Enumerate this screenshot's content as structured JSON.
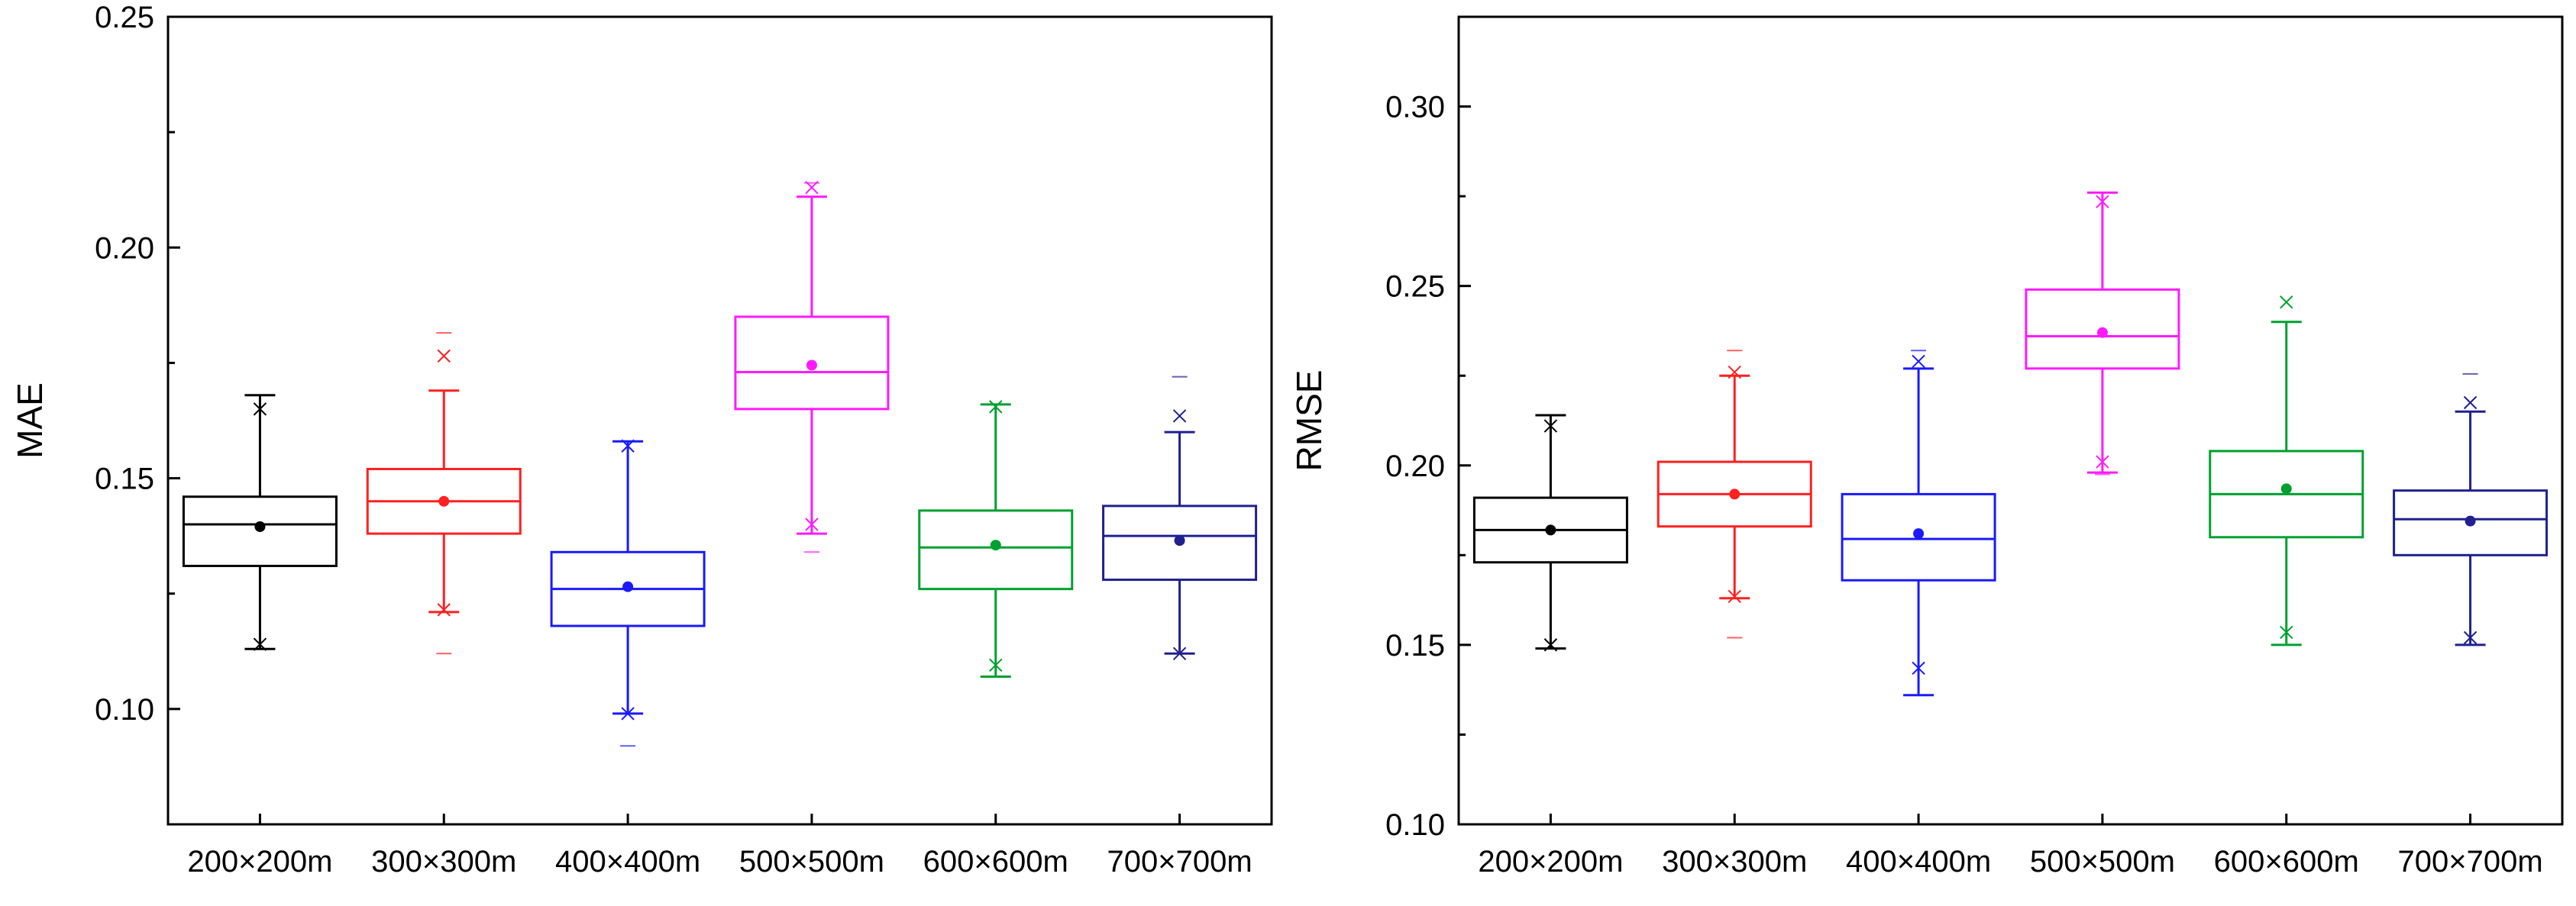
{
  "chart_data": [
    {
      "type": "box",
      "title": "",
      "xlabel": "",
      "ylabel": "MAE",
      "ylim": [
        0.075,
        0.25
      ],
      "yticks": [
        0.1,
        0.15,
        0.2,
        0.25
      ],
      "ytick_labels": [
        "0.10",
        "0.15",
        "0.20",
        "0.25"
      ],
      "categories": [
        "200×200m",
        "300×300m",
        "400×400m",
        "500×500m",
        "600×600m",
        "700×700m"
      ],
      "series": [
        {
          "name": "200×200m",
          "color": "#000000",
          "whisker_low": 0.113,
          "q1": 0.131,
          "median": 0.14,
          "q3": 0.146,
          "whisker_high": 0.168,
          "mean": 0.1395,
          "x_marks": [
            0.165,
            0.114
          ],
          "outliers": []
        },
        {
          "name": "300×300m",
          "color": "#ff2020",
          "whisker_low": 0.121,
          "q1": 0.138,
          "median": 0.145,
          "q3": 0.152,
          "whisker_high": 0.169,
          "mean": 0.145,
          "x_marks": [
            0.1765,
            0.1215
          ],
          "outliers": [
            0.1815,
            0.112
          ]
        },
        {
          "name": "400×400m",
          "color": "#1a1aff",
          "whisker_low": 0.099,
          "q1": 0.118,
          "median": 0.126,
          "q3": 0.134,
          "whisker_high": 0.158,
          "mean": 0.1265,
          "x_marks": [
            0.157,
            0.099
          ],
          "outliers": [
            0.092
          ]
        },
        {
          "name": "500×500m",
          "color": "#ff1aff",
          "whisker_low": 0.138,
          "q1": 0.165,
          "median": 0.173,
          "q3": 0.185,
          "whisker_high": 0.211,
          "mean": 0.1745,
          "x_marks": [
            0.213,
            0.14
          ],
          "outliers": [
            0.214,
            0.134
          ]
        },
        {
          "name": "600×600m",
          "color": "#00a030",
          "whisker_low": 0.107,
          "q1": 0.126,
          "median": 0.135,
          "q3": 0.143,
          "whisker_high": 0.166,
          "mean": 0.1355,
          "x_marks": [
            0.1655,
            0.1095
          ],
          "outliers": []
        },
        {
          "name": "700×700m",
          "color": "#202090",
          "whisker_low": 0.112,
          "q1": 0.128,
          "median": 0.1375,
          "q3": 0.144,
          "whisker_high": 0.16,
          "mean": 0.1365,
          "x_marks": [
            0.1635,
            0.112
          ],
          "outliers": [
            0.172
          ]
        }
      ]
    },
    {
      "type": "box",
      "title": "",
      "xlabel": "",
      "ylabel": "RMSE",
      "ylim": [
        0.1,
        0.325
      ],
      "yticks": [
        0.1,
        0.15,
        0.2,
        0.25,
        0.3
      ],
      "ytick_labels": [
        "0.10",
        "0.15",
        "0.20",
        "0.25",
        "0.30"
      ],
      "categories": [
        "200×200m",
        "300×300m",
        "400×400m",
        "500×500m",
        "600×600m",
        "700×700m"
      ],
      "series": [
        {
          "name": "200×200m",
          "color": "#000000",
          "whisker_low": 0.149,
          "q1": 0.173,
          "median": 0.182,
          "q3": 0.191,
          "whisker_high": 0.214,
          "mean": 0.182,
          "x_marks": [
            0.211,
            0.15
          ],
          "outliers": []
        },
        {
          "name": "300×300m",
          "color": "#ff2020",
          "whisker_low": 0.163,
          "q1": 0.183,
          "median": 0.192,
          "q3": 0.201,
          "whisker_high": 0.225,
          "mean": 0.192,
          "x_marks": [
            0.226,
            0.1635
          ],
          "outliers": [
            0.232,
            0.152
          ]
        },
        {
          "name": "400×400m",
          "color": "#1a1aff",
          "whisker_low": 0.136,
          "q1": 0.168,
          "median": 0.1795,
          "q3": 0.192,
          "whisker_high": 0.227,
          "mean": 0.181,
          "x_marks": [
            0.229,
            0.1435
          ],
          "outliers": [
            0.232
          ]
        },
        {
          "name": "500×500m",
          "color": "#ff1aff",
          "whisker_low": 0.198,
          "q1": 0.227,
          "median": 0.236,
          "q3": 0.249,
          "whisker_high": 0.276,
          "mean": 0.237,
          "x_marks": [
            0.2735,
            0.201
          ],
          "outliers": [
            0.276,
            0.1975
          ]
        },
        {
          "name": "600×600m",
          "color": "#00a030",
          "whisker_low": 0.15,
          "q1": 0.18,
          "median": 0.192,
          "q3": 0.204,
          "whisker_high": 0.24,
          "mean": 0.1935,
          "x_marks": [
            0.2455,
            0.1535
          ],
          "outliers": []
        },
        {
          "name": "700×700m",
          "color": "#202090",
          "whisker_low": 0.15,
          "q1": 0.175,
          "median": 0.185,
          "q3": 0.193,
          "whisker_high": 0.215,
          "mean": 0.1845,
          "x_marks": [
            0.2175,
            0.152
          ],
          "outliers": [
            0.2255
          ]
        }
      ]
    }
  ]
}
